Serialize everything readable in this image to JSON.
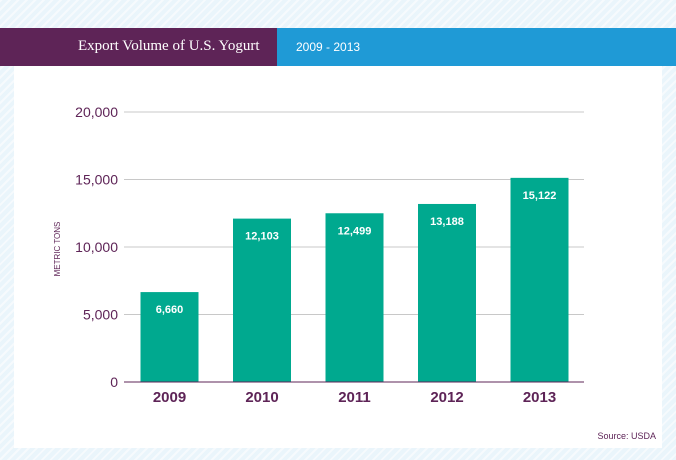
{
  "header": {
    "title": "Export Volume of U.S. Yogurt",
    "range": "2009 - 2013"
  },
  "source": "Source: USDA",
  "colors": {
    "bar": "#00a98f",
    "header_title_bg": "#5e2457",
    "header_range_bg": "#1f9ad6",
    "axis_text": "#5e2457",
    "grid": "#c8c8c8"
  },
  "chart_data": {
    "type": "bar",
    "categories": [
      "2009",
      "2010",
      "2011",
      "2012",
      "2013"
    ],
    "values": [
      6660,
      12103,
      12499,
      13188,
      15122
    ],
    "value_labels": [
      "6,660",
      "12,103",
      "12,499",
      "13,188",
      "15,122"
    ],
    "ylabel": "METRIC TONS",
    "xlabel": "",
    "ylim": [
      0,
      20000
    ],
    "yticks": [
      0,
      5000,
      10000,
      15000,
      20000
    ],
    "ytick_labels": [
      "0",
      "5,000",
      "10,000",
      "15,000",
      "20,000"
    ],
    "grid": true,
    "legend": false
  }
}
